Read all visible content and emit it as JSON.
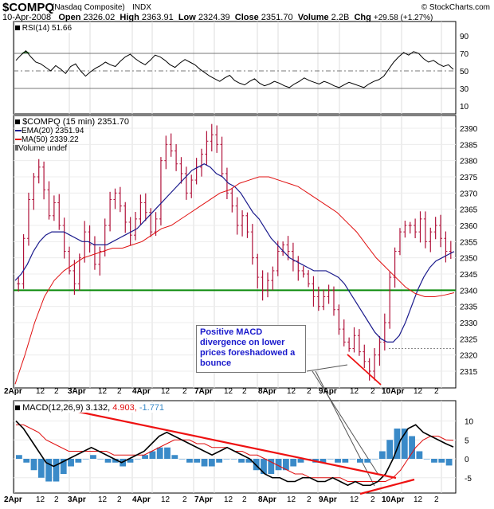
{
  "header": {
    "symbol": "$COMPQ",
    "name": "(Nasdaq Composite)",
    "exchange": "INDX",
    "watermark": "© StockCharts.com",
    "date": "10-Apr-2008",
    "open_label": "Open",
    "open": "2326.02",
    "high_label": "High",
    "high": "2363.91",
    "low_label": "Low",
    "low": "2324.39",
    "close_label": "Close",
    "close": "2351.70",
    "volume_label": "Volume",
    "volume": "2.2B",
    "chg_label": "Chg",
    "chg": "+29.58 (+1.27%)"
  },
  "rsi_panel": {
    "label": "RSI(14)",
    "value": "51.66",
    "ticks": [
      "90",
      "70",
      "50",
      "30",
      "10"
    ]
  },
  "price_panel": {
    "label": "$COMPQ (15 min) 2351.70",
    "ema_label": "EMA(20) 2351.94",
    "ma_label": "MA(50) 2339.22",
    "volume_label": "Volume undef",
    "ticks": [
      "2390",
      "2385",
      "2380",
      "2375",
      "2370",
      "2365",
      "2360",
      "2355",
      "2350",
      "2345",
      "2340",
      "2335",
      "2330",
      "2325",
      "2320",
      "2315"
    ]
  },
  "macd_panel": {
    "label": "MACD(12,26,9)",
    "macd": "3.132,",
    "signal": "4.903,",
    "hist": "-1.771",
    "ticks": [
      "10",
      "5",
      "0",
      "-5"
    ]
  },
  "xaxis_labels": [
    "2Apr",
    "12",
    "2",
    "3Apr",
    "12",
    "2",
    "4Apr",
    "12",
    "2",
    "7Apr",
    "12",
    "2",
    "8Apr",
    "12",
    "2",
    "9Apr",
    "12",
    "2",
    "10Apr",
    "12",
    "2"
  ],
  "annotation": "Positive MACD divergence on lower prices foreshadowed a bounce",
  "colors": {
    "bar": "#b0123a",
    "ema": "#1a1a8c",
    "ma": "#e01010",
    "support": "#0a8a0a",
    "rsi_fill": "#3a7a3a",
    "hist": "#3a8ac8",
    "trend": "#ee1111"
  },
  "chart_data": [
    {
      "type": "line",
      "title": "RSI(14)",
      "ylim": [
        0,
        100
      ],
      "reference_lines": [
        70,
        50,
        30
      ],
      "values": [
        62,
        68,
        73,
        66,
        60,
        58,
        54,
        50,
        56,
        52,
        47,
        55,
        58,
        50,
        44,
        49,
        53,
        56,
        60,
        57,
        55,
        61,
        66,
        69,
        64,
        60,
        57,
        62,
        68,
        66,
        62,
        57,
        54,
        59,
        63,
        60,
        57,
        52,
        48,
        44,
        41,
        38,
        42,
        45,
        39,
        36,
        34,
        38,
        41,
        36,
        33,
        35,
        38,
        36,
        33,
        31,
        35,
        38,
        42,
        39,
        37,
        35,
        38,
        36,
        33,
        31,
        34,
        37,
        35,
        33,
        31,
        35,
        38,
        40,
        44,
        52,
        60,
        66,
        71,
        68,
        72,
        70,
        64,
        60,
        62,
        58,
        55,
        57,
        51.66
      ]
    },
    {
      "type": "line",
      "title": "$COMPQ (15 min)",
      "ylim": [
        2311,
        2393
      ],
      "support_level": 2340,
      "current_price_marker": 2322,
      "series": [
        {
          "name": "$COMPQ",
          "values": [
            2342,
            2356,
            2368,
            2375,
            2378,
            2371,
            2363,
            2367,
            2360,
            2352,
            2346,
            2342,
            2350,
            2358,
            2354,
            2348,
            2352,
            2360,
            2368,
            2370,
            2366,
            2361,
            2357,
            2362,
            2367,
            2364,
            2358,
            2362,
            2380,
            2385,
            2383,
            2379,
            2376,
            2370,
            2374,
            2378,
            2382,
            2386,
            2388,
            2385,
            2376,
            2370,
            2366,
            2360,
            2363,
            2358,
            2350,
            2344,
            2340,
            2343,
            2346,
            2352,
            2354,
            2352,
            2349,
            2346,
            2345,
            2342,
            2338,
            2335,
            2338,
            2340,
            2334,
            2328,
            2324,
            2322,
            2326,
            2321,
            2318,
            2315,
            2320,
            2324,
            2330,
            2344,
            2352,
            2358,
            2360,
            2360,
            2358,
            2362,
            2355,
            2358,
            2360,
            2356,
            2352,
            2351.7
          ]
        },
        {
          "name": "EMA(20)",
          "values": [
            2343,
            2345,
            2348,
            2352,
            2355,
            2357,
            2358,
            2358,
            2358,
            2357,
            2356,
            2355,
            2355,
            2354,
            2354,
            2354,
            2355,
            2356,
            2357,
            2358,
            2359,
            2361,
            2363,
            2365,
            2367,
            2369,
            2371,
            2373,
            2375,
            2377,
            2378,
            2379,
            2378,
            2376,
            2375,
            2373,
            2372,
            2370,
            2367,
            2364,
            2362,
            2359,
            2356,
            2354,
            2352,
            2350,
            2349,
            2348,
            2347,
            2346,
            2346,
            2346,
            2345,
            2344,
            2342,
            2339,
            2336,
            2333,
            2330,
            2327,
            2325,
            2324,
            2324,
            2326,
            2330,
            2335,
            2340,
            2344,
            2347,
            2349,
            2350,
            2351,
            2351.94
          ]
        },
        {
          "name": "MA(50)",
          "values": [
            2311,
            2320,
            2330,
            2338,
            2343,
            2346,
            2348,
            2350,
            2351,
            2352,
            2353,
            2353,
            2354,
            2355,
            2357,
            2359,
            2360,
            2362,
            2364,
            2366,
            2368,
            2370,
            2371,
            2373,
            2374,
            2375,
            2375,
            2374,
            2373,
            2372,
            2370,
            2368,
            2366,
            2364,
            2361,
            2358,
            2354,
            2350,
            2347,
            2344,
            2341,
            2339,
            2338,
            2338,
            2338.5,
            2339.22
          ]
        }
      ]
    },
    {
      "type": "line",
      "title": "MACD(12,26,9)",
      "ylim": [
        -9,
        13
      ],
      "series": [
        {
          "name": "MACD",
          "values": [
            10,
            8,
            5,
            2,
            -1,
            -2,
            -1,
            0,
            1,
            2,
            3,
            2,
            1,
            0,
            -1,
            0,
            1,
            2,
            4,
            6,
            7,
            6,
            5,
            4,
            3,
            2,
            1,
            2,
            3,
            2,
            1,
            0,
            -2,
            -4,
            -5,
            -5,
            -6,
            -6,
            -5,
            -5,
            -6,
            -6,
            -5,
            -6,
            -7,
            -6,
            -7,
            -7,
            -6,
            -4,
            0,
            5,
            8,
            9,
            7,
            6,
            5,
            4,
            3.132
          ]
        },
        {
          "name": "Signal",
          "values": [
            9,
            9,
            8,
            7,
            5,
            4,
            3,
            2,
            2,
            2,
            2,
            2,
            2,
            1,
            1,
            1,
            1,
            1,
            2,
            3,
            4,
            5,
            5,
            5,
            4,
            4,
            3,
            3,
            3,
            2,
            2,
            1,
            1,
            0,
            -1,
            -2,
            -3,
            -4,
            -4,
            -5,
            -5,
            -5,
            -5,
            -5,
            -6,
            -6,
            -6,
            -6,
            -6,
            -6,
            -5,
            -3,
            0,
            3,
            5,
            6,
            6,
            5,
            4.903
          ]
        },
        {
          "name": "Histogram",
          "values": [
            1,
            -1,
            -3,
            -5,
            -6,
            -6,
            -4,
            -2,
            -1,
            0,
            1,
            0,
            -1,
            -1,
            -2,
            -1,
            0,
            1,
            2,
            3,
            3,
            1,
            0,
            -1,
            -1,
            -2,
            -2,
            -1,
            0,
            0,
            -1,
            -1,
            -3,
            -4,
            -4,
            -3,
            -3,
            -2,
            -1,
            0,
            -1,
            -1,
            0,
            -1,
            -1,
            0,
            -1,
            -1,
            0,
            2,
            5,
            8,
            8,
            6,
            2,
            0,
            -1,
            -1,
            -1.771
          ]
        }
      ]
    }
  ]
}
